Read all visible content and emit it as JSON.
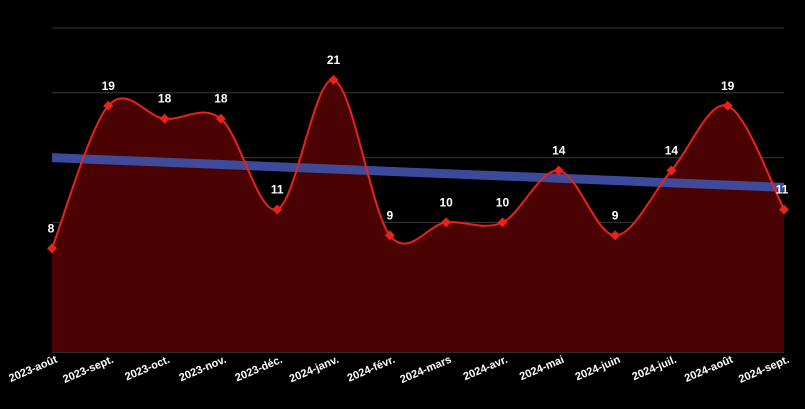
{
  "chart_data": {
    "type": "area",
    "title": "",
    "xlabel": "",
    "ylabel": "",
    "ylim": [
      0,
      25
    ],
    "grid": true,
    "categories": [
      "2023-août",
      "2023-sept.",
      "2023-oct.",
      "2023-nov.",
      "2023-déc.",
      "2024-janv.",
      "2024-févr.",
      "2024-mars",
      "2024-avr.",
      "2024-mai",
      "2024-juin",
      "2024-juil.",
      "2024-août",
      "2024-sept."
    ],
    "series": [
      {
        "values": [
          8,
          19,
          18,
          18,
          11,
          21,
          9,
          10,
          10,
          14,
          9,
          14,
          19,
          11
        ],
        "color": "#e8231c",
        "fill": "#4a0202"
      }
    ],
    "trendline": {
      "start": 15.0,
      "end": 12.7,
      "color": "#3f4fa3"
    }
  }
}
